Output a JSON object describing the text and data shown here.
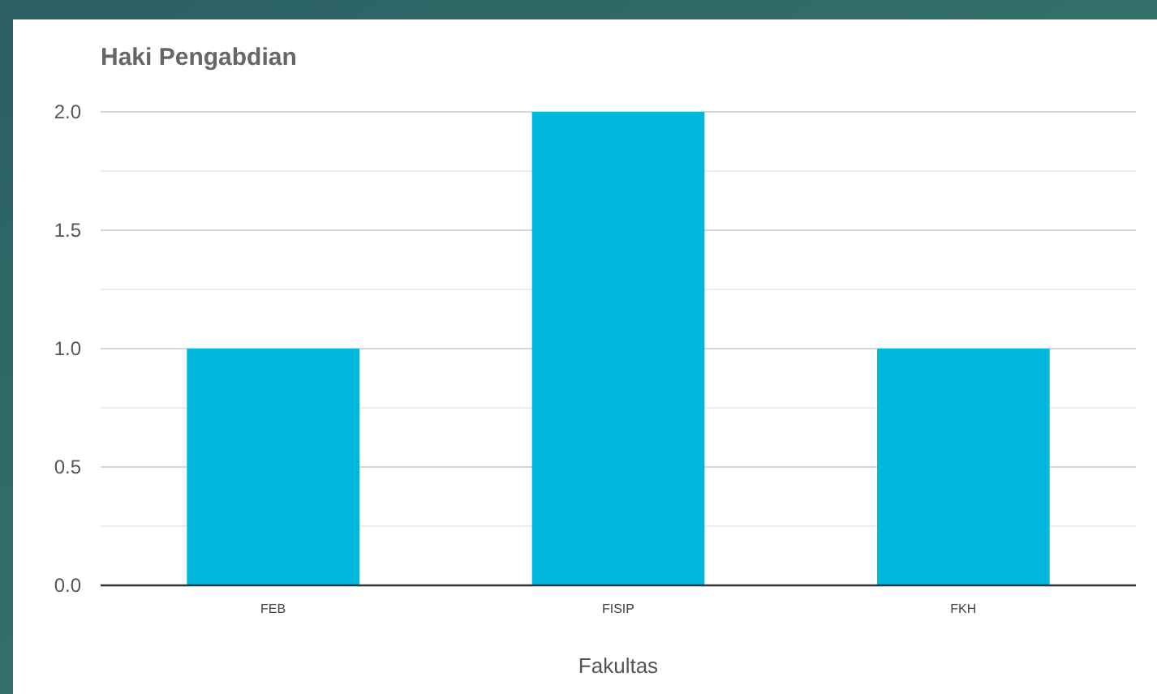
{
  "chart_data": {
    "type": "bar",
    "title": "Haki Pengabdian",
    "xlabel": "Fakultas",
    "categories": [
      "FEB",
      "FISIP",
      "FKH"
    ],
    "values": [
      1,
      2,
      1
    ],
    "color": "#00b8de",
    "ylim": [
      0,
      2
    ],
    "yticks": [
      {
        "value": 0,
        "label": "0.0"
      },
      {
        "value": 0.25,
        "label": null
      },
      0.5,
      {
        "value": 0.75,
        "label": null
      },
      {
        "value": 1,
        "label": "1.0"
      },
      {
        "value": 1.25,
        "label": null
      },
      1.5,
      {
        "value": 1.75,
        "label": null
      },
      {
        "value": 2,
        "label": "2.0"
      }
    ],
    "grid": true
  }
}
